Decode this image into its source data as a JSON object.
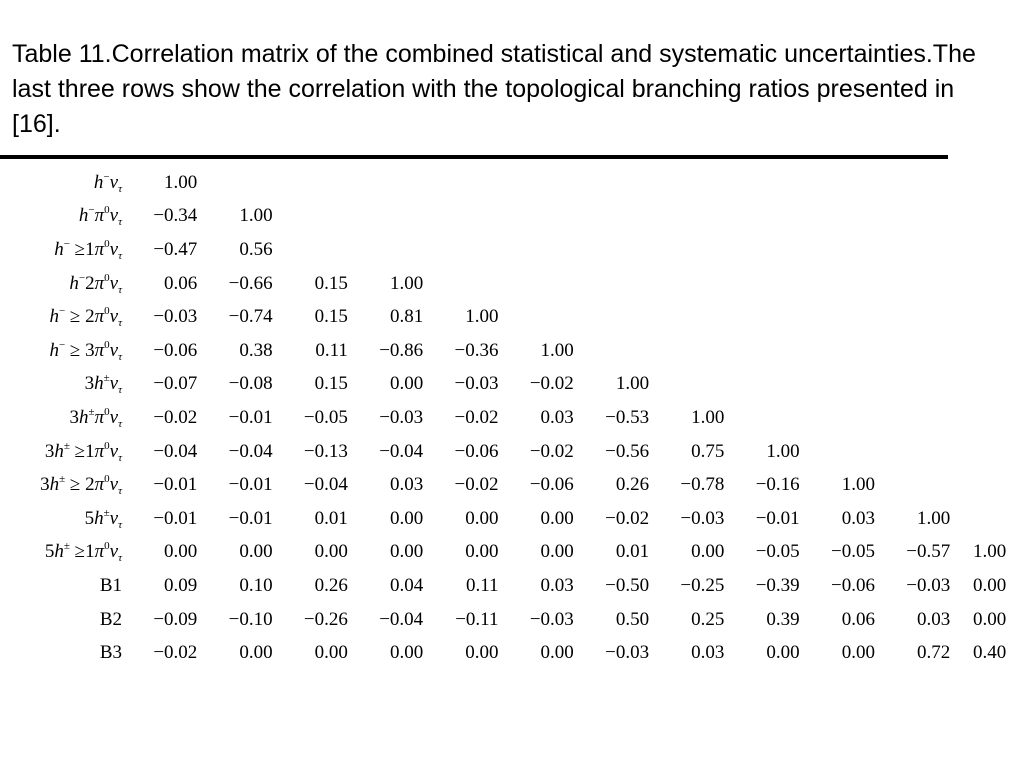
{
  "caption": "Table 11.Correlation matrix of the combined statistical and systematic uncertainties.The last three rows show the correlation with the topological branching ratios presented in [16].",
  "rows": [
    {
      "label": "h⁻ν_τ",
      "label_html": "<i>h</i><sup>−</sup><i>ν</i><sub><i>τ</i></sub>",
      "values": [
        "1.00"
      ]
    },
    {
      "label": "h⁻π⁰ν_τ",
      "label_html": "<i>h</i><sup>−</sup><i>π</i><sup>0</sup><i>ν</i><sub><i>τ</i></sub>",
      "values": [
        "−0.34",
        "1.00"
      ]
    },
    {
      "label": "h⁻ ≥1π⁰ν_τ",
      "label_html": "<i>h</i><sup>−</sup> ≥1<i>π</i><sup>0</sup><i>ν</i><sub><i>τ</i></sub>",
      "values": [
        "−0.47",
        "0.56"
      ]
    },
    {
      "label": "h⁻2π⁰ν_τ",
      "label_html": "<i>h</i><sup>−</sup>2<i>π</i><sup>0</sup><i>ν</i><sub><i>τ</i></sub>",
      "values": [
        "0.06",
        "−0.66",
        "0.15",
        "1.00"
      ]
    },
    {
      "label": "h⁻ ≥ 2π⁰ν_τ",
      "label_html": "<i>h</i><sup>−</sup> ≥ 2<i>π</i><sup>0</sup><i>ν</i><sub><i>τ</i></sub>",
      "values": [
        "−0.03",
        "−0.74",
        "0.15",
        "0.81",
        "1.00"
      ]
    },
    {
      "label": "h⁻ ≥ 3π⁰ν_τ",
      "label_html": "<i>h</i><sup>−</sup> ≥ 3<i>π</i><sup>0</sup><i>ν</i><sub><i>τ</i></sub>",
      "values": [
        "−0.06",
        "0.38",
        "0.11",
        "−0.86",
        "−0.36",
        "1.00"
      ]
    },
    {
      "label": "3h±ν_τ",
      "label_html": "3<i>h</i><sup>±</sup><i>ν</i><sub><i>τ</i></sub>",
      "values": [
        "−0.07",
        "−0.08",
        "0.15",
        "0.00",
        "−0.03",
        "−0.02",
        "1.00"
      ]
    },
    {
      "label": "3h±π⁰ν_τ",
      "label_html": "3<i>h</i><sup>±</sup><i>π</i><sup>0</sup><i>ν</i><sub><i>τ</i></sub>",
      "values": [
        "−0.02",
        "−0.01",
        "−0.05",
        "−0.03",
        "−0.02",
        "0.03",
        "−0.53",
        "1.00"
      ]
    },
    {
      "label": "3h± ≥1π⁰ν_τ",
      "label_html": "3<i>h</i><sup>±</sup> ≥1<i>π</i><sup>0</sup><i>ν</i><sub><i>τ</i></sub>",
      "values": [
        "−0.04",
        "−0.04",
        "−0.13",
        "−0.04",
        "−0.06",
        "−0.02",
        "−0.56",
        "0.75",
        "1.00"
      ]
    },
    {
      "label": "3h± ≥ 2π⁰ν_τ",
      "label_html": "3<i>h</i><sup>±</sup> ≥ 2<i>π</i><sup>0</sup><i>ν</i><sub><i>τ</i></sub>",
      "values": [
        "−0.01",
        "−0.01",
        "−0.04",
        "0.03",
        "−0.02",
        "−0.06",
        "0.26",
        "−0.78",
        "−0.16",
        "1.00"
      ]
    },
    {
      "label": "5h±ν_τ",
      "label_html": "5<i>h</i><sup>±</sup><i>ν</i><sub><i>τ</i></sub>",
      "values": [
        "−0.01",
        "−0.01",
        "0.01",
        "0.00",
        "0.00",
        "0.00",
        "−0.02",
        "−0.03",
        "−0.01",
        "0.03",
        "1.00"
      ]
    },
    {
      "label": "5h± ≥1π⁰ν_τ",
      "label_html": "5<i>h</i><sup>±</sup> ≥1<i>π</i><sup>0</sup><i>ν</i><sub><i>τ</i></sub>",
      "values": [
        "0.00",
        "0.00",
        "0.00",
        "0.00",
        "0.00",
        "0.00",
        "0.01",
        "0.00",
        "−0.05",
        "−0.05",
        "−0.57",
        "1.00"
      ]
    },
    {
      "label": "B1",
      "label_html": "B1",
      "values": [
        "0.09",
        "0.10",
        "0.26",
        "0.04",
        "0.11",
        "0.03",
        "−0.50",
        "−0.25",
        "−0.39",
        "−0.06",
        "−0.03",
        "0.00"
      ]
    },
    {
      "label": "B2",
      "label_html": "B2",
      "values": [
        "−0.09",
        "−0.10",
        "−0.26",
        "−0.04",
        "−0.11",
        "−0.03",
        "0.50",
        "0.25",
        "0.39",
        "0.06",
        "0.03",
        "0.00"
      ]
    },
    {
      "label": "B3",
      "label_html": "B3",
      "values": [
        "−0.02",
        "0.00",
        "0.00",
        "0.00",
        "0.00",
        "0.00",
        "−0.03",
        "0.03",
        "0.00",
        "0.00",
        "0.72",
        "0.40"
      ]
    }
  ]
}
